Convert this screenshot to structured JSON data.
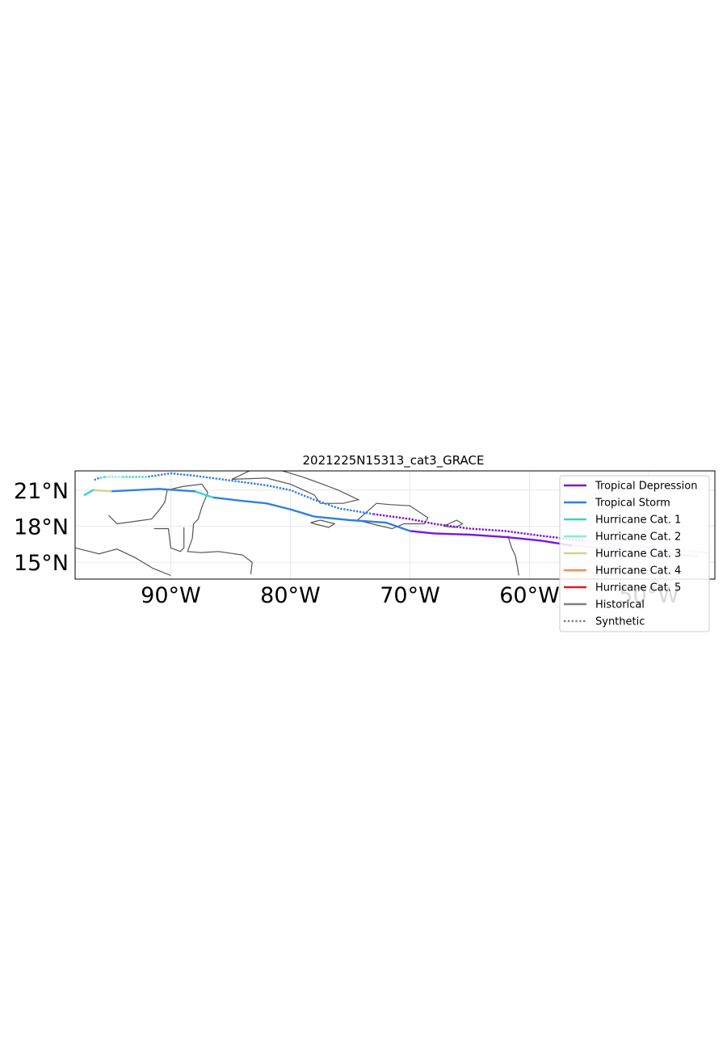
{
  "title": "2021225N15313_cat3_GRACE",
  "map": {
    "extent_lon": [
      -98,
      -44.5
    ],
    "extent_lat": [
      13.6,
      22.6
    ],
    "x_ticks": [
      {
        "lon": -90,
        "label": "90°W"
      },
      {
        "lon": -80,
        "label": "80°W"
      },
      {
        "lon": -70,
        "label": "70°W"
      },
      {
        "lon": -60,
        "label": "60°W"
      },
      {
        "lon": -50,
        "label": "50°W"
      }
    ],
    "y_ticks": [
      {
        "lat": 21,
        "label": "21°N"
      },
      {
        "lat": 18,
        "label": "18°N"
      },
      {
        "lat": 15,
        "label": "15°N"
      }
    ],
    "gridlines": true,
    "coastline_color": "#555555"
  },
  "legend": {
    "placement": "top-right",
    "entries": [
      {
        "label": "Tropical Depression",
        "color": "#7b12e6",
        "style": "solid"
      },
      {
        "label": "Tropical Storm",
        "color": "#2f80e6",
        "style": "solid"
      },
      {
        "label": "Hurricane Cat. 1",
        "color": "#33d6d0",
        "style": "solid"
      },
      {
        "label": "Hurricane Cat. 2",
        "color": "#7ff3c8",
        "style": "solid"
      },
      {
        "label": "Hurricane Cat. 3",
        "color": "#d2d48a",
        "style": "solid"
      },
      {
        "label": "Hurricane Cat. 4",
        "color": "#f58a5a",
        "style": "solid"
      },
      {
        "label": "Hurricane Cat. 5",
        "color": "#e61a1a",
        "style": "solid"
      },
      {
        "label": "Historical",
        "color": "#808080",
        "style": "solid"
      },
      {
        "label": "Synthetic",
        "color": "#808080",
        "style": "dotted"
      }
    ]
  },
  "tracks": [
    {
      "name": "historical",
      "style": "solid",
      "segments": [
        {
          "category": "Tropical Depression",
          "color": "#c8a8f0",
          "points": [
            [
              -46,
              15.5
            ],
            [
              -50,
              15.8
            ],
            [
              -54,
              16.2
            ],
            [
              -56.5,
              16.4
            ]
          ]
        },
        {
          "category": "Tropical Depression",
          "color": "#7b12e6",
          "points": [
            [
              -56.5,
              16.4
            ],
            [
              -59,
              16.8
            ],
            [
              -62,
              17.1
            ],
            [
              -65,
              17.3
            ],
            [
              -68,
              17.4
            ],
            [
              -70,
              17.6
            ]
          ]
        },
        {
          "category": "Tropical Storm",
          "color": "#2f80e6",
          "points": [
            [
              -70,
              17.6
            ],
            [
              -72,
              18.3
            ],
            [
              -75,
              18.5
            ],
            [
              -78,
              18.8
            ],
            [
              -80,
              19.4
            ],
            [
              -82,
              19.9
            ],
            [
              -84,
              20.1
            ],
            [
              -86.5,
              20.4
            ]
          ]
        },
        {
          "category": "Hurricane Cat. 1",
          "color": "#33d6d0",
          "points": [
            [
              -86.5,
              20.4
            ],
            [
              -88,
              20.9
            ]
          ]
        },
        {
          "category": "Tropical Storm",
          "color": "#2f80e6",
          "points": [
            [
              -88,
              20.9
            ],
            [
              -91,
              21.1
            ],
            [
              -93,
              21.0
            ],
            [
              -95,
              20.9
            ]
          ]
        },
        {
          "category": "Hurricane Cat. 3",
          "color": "#d2d48a",
          "points": [
            [
              -95,
              20.9
            ],
            [
              -96.5,
              21.0
            ]
          ]
        },
        {
          "category": "Hurricane Cat. 1",
          "color": "#33d6d0",
          "points": [
            [
              -96.5,
              21.0
            ],
            [
              -97.2,
              20.6
            ]
          ]
        }
      ]
    },
    {
      "name": "synthetic",
      "style": "dotted",
      "segments": [
        {
          "category": "Tropical Depression",
          "color": "#c8a8f0",
          "points": [
            [
              -45,
              15.8
            ],
            [
              -49,
              16.1
            ],
            [
              -53,
              16.5
            ],
            [
              -55.5,
              16.8
            ]
          ]
        },
        {
          "category": "Tropical Depression",
          "color": "#7b12e6",
          "points": [
            [
              -55.5,
              16.8
            ],
            [
              -59,
              17.2
            ],
            [
              -62,
              17.6
            ],
            [
              -65,
              17.8
            ],
            [
              -68,
              18.2
            ],
            [
              -70,
              18.6
            ],
            [
              -73,
              19.0
            ]
          ]
        },
        {
          "category": "Tropical Storm",
          "color": "#2f80e6",
          "points": [
            [
              -73,
              19.0
            ],
            [
              -76,
              19.5
            ],
            [
              -78,
              20.2
            ],
            [
              -80,
              21.0
            ],
            [
              -82,
              21.4
            ],
            [
              -85,
              21.8
            ],
            [
              -88,
              22.2
            ],
            [
              -90,
              22.4
            ],
            [
              -92,
              22.1
            ]
          ]
        },
        {
          "category": "Hurricane Cat. 1",
          "color": "#33d6d0",
          "points": [
            [
              -92,
              22.1
            ],
            [
              -94,
              22.1
            ]
          ]
        },
        {
          "category": "Hurricane Cat. 2",
          "color": "#7ff3c8",
          "points": [
            [
              -94,
              22.1
            ],
            [
              -95.5,
              22.1
            ]
          ]
        },
        {
          "category": "Hurricane Cat. 1",
          "color": "#33d6d0",
          "points": [
            [
              -95.5,
              22.1
            ],
            [
              -96,
              22.0
            ]
          ]
        },
        {
          "category": "Tropical Storm",
          "color": "#2f80e6",
          "points": [
            [
              -96,
              22.0
            ],
            [
              -96.5,
              21.8
            ]
          ]
        }
      ]
    }
  ],
  "coastlines": [
    [
      [
        -98,
        16.2
      ],
      [
        -96,
        15.7
      ],
      [
        -94.5,
        16.1
      ],
      [
        -93,
        15.4
      ],
      [
        -91.5,
        14.5
      ],
      [
        -90,
        13.9
      ]
    ],
    [
      [
        -95.2,
        18.9
      ],
      [
        -94.5,
        18.2
      ],
      [
        -93,
        18.4
      ],
      [
        -91.6,
        18.6
      ],
      [
        -91,
        19.3
      ],
      [
        -90.5,
        20.0
      ],
      [
        -90.3,
        21.0
      ],
      [
        -89,
        21.3
      ],
      [
        -87.4,
        21.5
      ],
      [
        -86.9,
        20.8
      ],
      [
        -87.4,
        19.6
      ],
      [
        -87.7,
        18.6
      ],
      [
        -88.1,
        18.2
      ],
      [
        -88.2,
        17.0
      ],
      [
        -88.6,
        15.9
      ],
      [
        -87.5,
        15.8
      ],
      [
        -86,
        15.9
      ],
      [
        -84,
        15.6
      ],
      [
        -83.2,
        15.0
      ],
      [
        -83.3,
        14.0
      ]
    ],
    [
      [
        -84.9,
        21.9
      ],
      [
        -83,
        22.8
      ],
      [
        -81,
        22.7
      ],
      [
        -79,
        22.1
      ],
      [
        -77.3,
        21.5
      ],
      [
        -76,
        21.0
      ],
      [
        -74.3,
        20.2
      ],
      [
        -75.6,
        19.9
      ],
      [
        -77.5,
        19.9
      ],
      [
        -78,
        20.6
      ],
      [
        -80,
        21.5
      ],
      [
        -82,
        22.0
      ],
      [
        -84.9,
        21.9
      ]
    ],
    [
      [
        -78.3,
        18.3
      ],
      [
        -77.5,
        18.5
      ],
      [
        -76.3,
        18.2
      ],
      [
        -76.8,
        17.9
      ],
      [
        -78,
        18.2
      ],
      [
        -78.3,
        18.3
      ]
    ],
    [
      [
        -74.4,
        18.5
      ],
      [
        -72.8,
        19.9
      ],
      [
        -71.7,
        19.8
      ],
      [
        -70,
        19.7
      ],
      [
        -68.5,
        18.7
      ],
      [
        -68.8,
        18.2
      ],
      [
        -70.5,
        18.2
      ],
      [
        -71.5,
        17.8
      ],
      [
        -72.8,
        18.1
      ],
      [
        -74.4,
        18.5
      ]
    ],
    [
      [
        -67.2,
        18.0
      ],
      [
        -66.1,
        18.5
      ],
      [
        -65.6,
        18.2
      ],
      [
        -66.2,
        17.9
      ],
      [
        -67.2,
        18.0
      ]
    ],
    [
      [
        -61.8,
        17.2
      ],
      [
        -61.5,
        16.2
      ],
      [
        -61.2,
        15.6
      ],
      [
        -61.0,
        14.6
      ],
      [
        -60.9,
        13.9
      ]
    ],
    [
      [
        -88.9,
        17.9
      ],
      [
        -88.9,
        16.2
      ],
      [
        -89.2,
        15.9
      ],
      [
        -90,
        16.2
      ],
      [
        -90.2,
        17.8
      ],
      [
        -91.4,
        17.8
      ]
    ]
  ]
}
